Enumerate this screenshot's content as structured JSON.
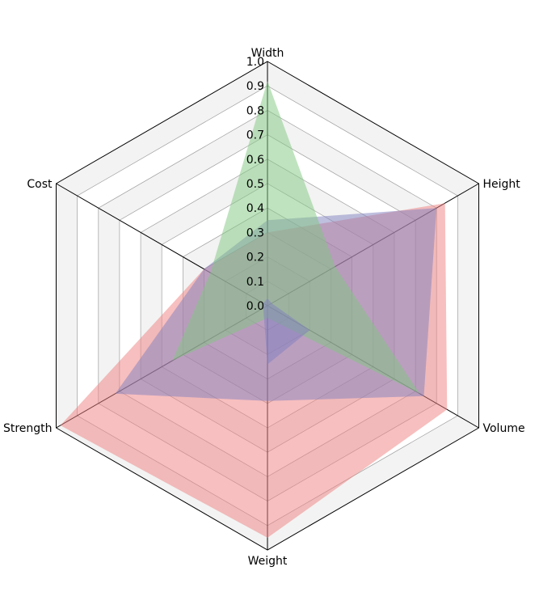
{
  "chart_data": {
    "type": "radar",
    "title": "",
    "axes": [
      "Width",
      "Height",
      "Volume",
      "Weight",
      "Strength",
      "Cost"
    ],
    "ticks": [
      "0.0",
      "0.1",
      "0.2",
      "0.3",
      "0.4",
      "0.5",
      "0.6",
      "0.7",
      "0.8",
      "0.9",
      "1.0"
    ],
    "range": [
      0,
      1
    ],
    "series": [
      {
        "values": [
          0.3,
          0.84,
          0.85,
          0.95,
          0.98,
          0.3
        ],
        "color": "#f08080"
      },
      {
        "values": [
          0.35,
          0.8,
          0.74,
          0.39,
          0.72,
          0.3
        ],
        "color": "#8080c0"
      },
      {
        "values": [
          0.92,
          0.32,
          0.72,
          0.05,
          0.45,
          0.27
        ],
        "color": "#80c880"
      },
      {
        "values": [
          0.03,
          0.02,
          0.2,
          0.24,
          0.02,
          0.02
        ],
        "color": "#8080c0"
      }
    ],
    "grid": true
  }
}
